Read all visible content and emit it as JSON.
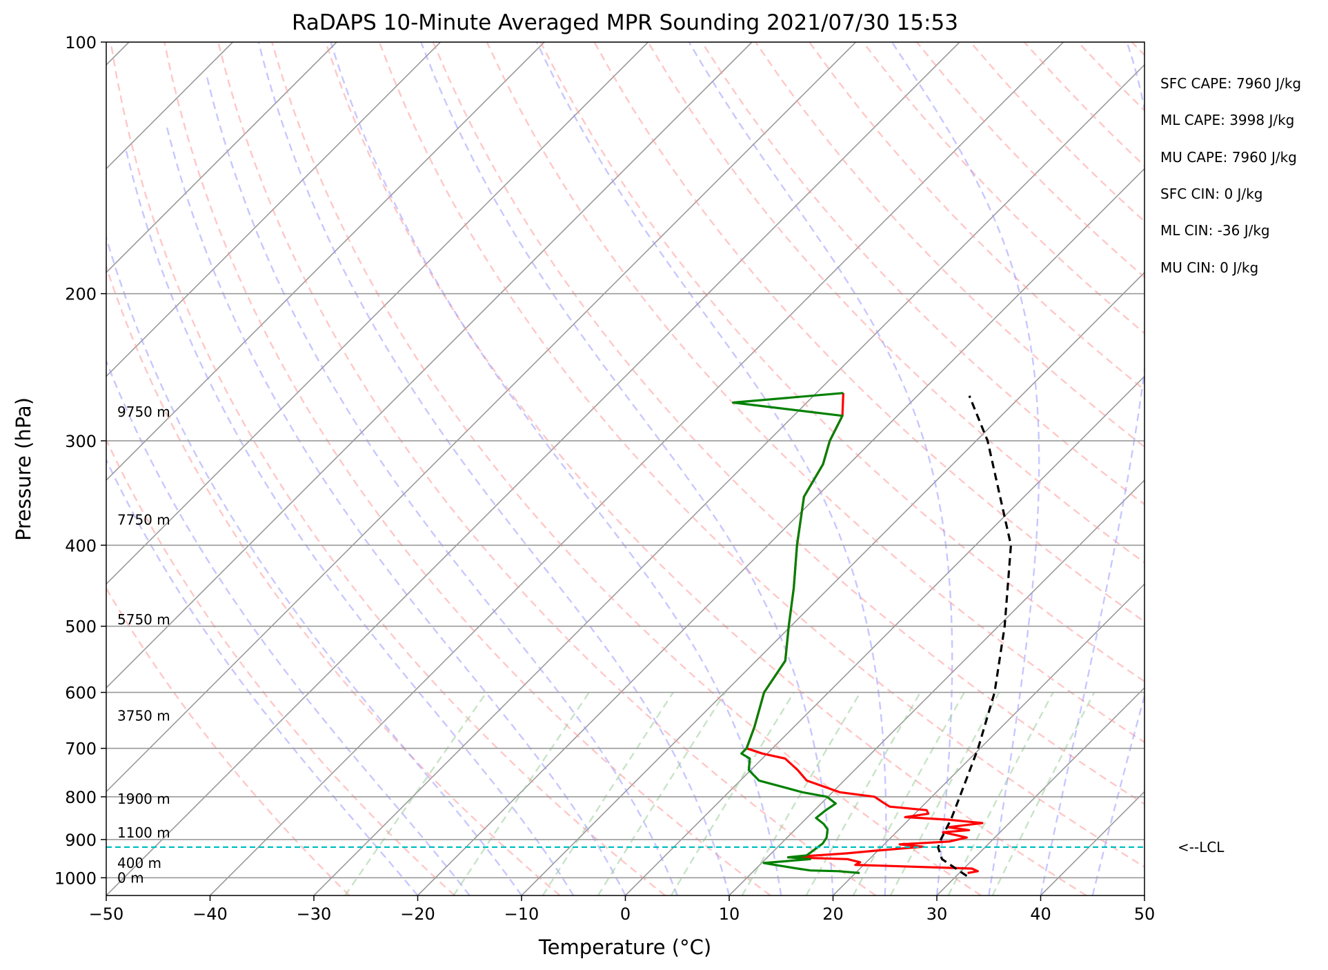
{
  "chart_data": {
    "type": "line",
    "title": "RaDAPS 10-Minute Averaged MPR Sounding 2021/07/30 15:53",
    "xlabel": "Temperature (°C)",
    "ylabel": "Pressure (hPa)",
    "xlim": [
      -50,
      50
    ],
    "ylim": [
      1050,
      100
    ],
    "y_scale": "log",
    "x_ticks": [
      -50,
      -40,
      -30,
      -20,
      -10,
      0,
      10,
      20,
      30,
      40,
      50
    ],
    "x_tick_labels": [
      "−50",
      "−40",
      "−30",
      "−20",
      "−10",
      "0",
      "10",
      "20",
      "30",
      "40",
      "50"
    ],
    "y_ticks": [
      100,
      200,
      300,
      400,
      500,
      600,
      700,
      800,
      900,
      1000
    ],
    "y_tick_labels": [
      "100",
      "200",
      "300",
      "400",
      "500",
      "600",
      "700",
      "800",
      "900",
      "1000"
    ],
    "grid": true,
    "skew": "45°",
    "background_lines": {
      "dry_adiabats_color": "#ff9999",
      "moist_adiabats_color": "#9999ff",
      "mixing_ratio_color": "#99cc99",
      "isotherm_color": "#999999"
    },
    "series": [
      {
        "role": "temperature",
        "color": "#ff0000",
        "points": [
          [
            987,
            30.8
          ],
          [
            982,
            31.6
          ],
          [
            975,
            30.8
          ],
          [
            965,
            19.2
          ],
          [
            958,
            19.4
          ],
          [
            950,
            17.9
          ],
          [
            945,
            12.0
          ],
          [
            935,
            17.2
          ],
          [
            928,
            19.8
          ],
          [
            918,
            24.0
          ],
          [
            912,
            21.5
          ],
          [
            905,
            26.0
          ],
          [
            895,
            27.3
          ],
          [
            882,
            24.5
          ],
          [
            877,
            26.8
          ],
          [
            870,
            24.5
          ],
          [
            860,
            27.4
          ],
          [
            852,
            23.8
          ],
          [
            846,
            19.4
          ],
          [
            838,
            21.3
          ],
          [
            830,
            20.8
          ],
          [
            822,
            16.9
          ],
          [
            812,
            15.8
          ],
          [
            800,
            14.5
          ],
          [
            790,
            10.7
          ],
          [
            765,
            6.4
          ],
          [
            743,
            4.5
          ],
          [
            720,
            2.2
          ],
          [
            710,
            -0.5
          ],
          [
            700,
            -2.5
          ],
          [
            660,
            -3.8
          ],
          [
            600,
            -6.2
          ],
          [
            550,
            -7.2
          ],
          [
            500,
            -10.2
          ],
          [
            450,
            -13.4
          ],
          [
            400,
            -17.2
          ],
          [
            350,
            -21.2
          ],
          [
            320,
            -22.5
          ],
          [
            300,
            -24.1
          ],
          [
            280,
            -25.3
          ],
          [
            263,
            -27.4
          ]
        ]
      },
      {
        "role": "dewpoint",
        "color": "#008000",
        "points": [
          [
            987,
            20.4
          ],
          [
            982,
            18.2
          ],
          [
            980,
            15.4
          ],
          [
            975,
            14.0
          ],
          [
            965,
            11.4
          ],
          [
            960,
            10.2
          ],
          [
            950,
            14.3
          ],
          [
            945,
            12.0
          ],
          [
            940,
            13.6
          ],
          [
            925,
            13.8
          ],
          [
            910,
            14.0
          ],
          [
            895,
            13.8
          ],
          [
            875,
            13.1
          ],
          [
            862,
            12.2
          ],
          [
            848,
            10.9
          ],
          [
            830,
            11.1
          ],
          [
            815,
            11.4
          ],
          [
            800,
            9.9
          ],
          [
            790,
            7.1
          ],
          [
            765,
            1.8
          ],
          [
            743,
            -0.2
          ],
          [
            720,
            -1.2
          ],
          [
            710,
            -2.5
          ],
          [
            700,
            -2.5
          ],
          [
            660,
            -3.8
          ],
          [
            600,
            -6.2
          ],
          [
            550,
            -7.2
          ],
          [
            500,
            -10.2
          ],
          [
            450,
            -13.4
          ],
          [
            400,
            -17.2
          ],
          [
            350,
            -21.2
          ],
          [
            320,
            -22.5
          ],
          [
            300,
            -24.1
          ],
          [
            280,
            -25.3
          ],
          [
            270,
            -37.1
          ],
          [
            263,
            -27.4
          ]
        ]
      },
      {
        "role": "parcel",
        "color": "#000000",
        "style": "dashed",
        "points": [
          [
            995,
            31.0
          ],
          [
            950,
            27.0
          ],
          [
            920,
            25.5
          ],
          [
            900,
            25.0
          ],
          [
            850,
            24.0
          ],
          [
            800,
            22.7
          ],
          [
            700,
            19.8
          ],
          [
            600,
            16.0
          ],
          [
            500,
            10.6
          ],
          [
            400,
            3.4
          ],
          [
            300,
            -8.9
          ],
          [
            265,
            -15.0
          ]
        ]
      }
    ],
    "lcl": {
      "pressure": 919,
      "label": "<--LCL",
      "color": "#00bfbf"
    },
    "height_labels": [
      {
        "p": 1000,
        "label": "0 m"
      },
      {
        "p": 960,
        "label": "400 m"
      },
      {
        "p": 883,
        "label": "1100 m"
      },
      {
        "p": 805,
        "label": "1900 m"
      },
      {
        "p": 640,
        "label": "3750 m"
      },
      {
        "p": 491,
        "label": "5750 m"
      },
      {
        "p": 373,
        "label": "7750 m"
      },
      {
        "p": 277,
        "label": "9750 m"
      }
    ],
    "indices": [
      "SFC CAPE: 7960 J/kg",
      "ML CAPE: 3998 J/kg",
      "MU CAPE: 7960 J/kg",
      "SFC CIN: 0 J/kg",
      "ML CIN: -36 J/kg",
      "MU CIN: 0 J/kg"
    ]
  }
}
